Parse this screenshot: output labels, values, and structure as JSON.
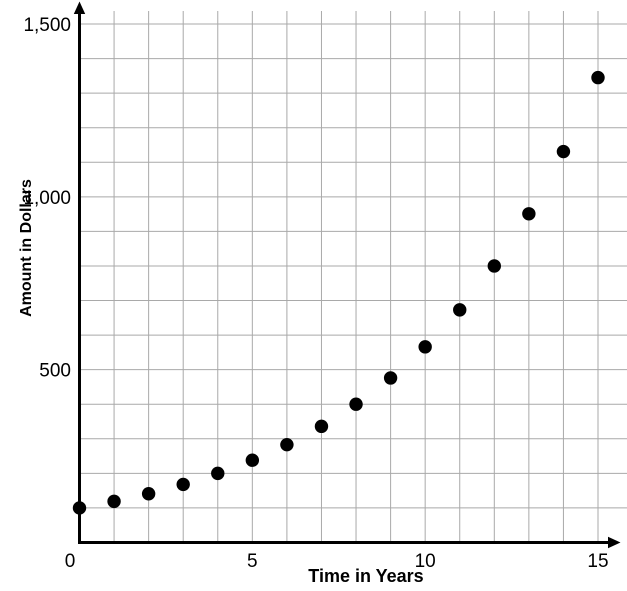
{
  "chart_data": {
    "type": "scatter",
    "title": "",
    "xlabel": "Time in Years",
    "ylabel": "Amount in Dollars",
    "x": [
      0,
      1,
      2,
      3,
      4,
      5,
      6,
      7,
      8,
      9,
      10,
      11,
      12,
      13,
      14,
      15
    ],
    "values": [
      100,
      119,
      141,
      168,
      200,
      238,
      283,
      336,
      400,
      476,
      566,
      673,
      800,
      951,
      1131,
      1345
    ],
    "xlim": [
      0,
      15
    ],
    "ylim": [
      0,
      1500
    ],
    "x_ticks": [
      {
        "value": 0,
        "label": "0"
      },
      {
        "value": 5,
        "label": "5"
      },
      {
        "value": 10,
        "label": "10"
      },
      {
        "value": 15,
        "label": "15"
      }
    ],
    "y_ticks": [
      {
        "value": 500,
        "label": "500"
      },
      {
        "value": 1000,
        "label": "1,000"
      },
      {
        "value": 1500,
        "label": "1,500"
      }
    ],
    "grid": {
      "on": true,
      "x_step": 1,
      "y_step": 100
    },
    "legend": "none",
    "point_color": "#000000",
    "axis_color": "#000000",
    "grid_color": "#a9a9a9",
    "background_color": "#ffffff"
  }
}
